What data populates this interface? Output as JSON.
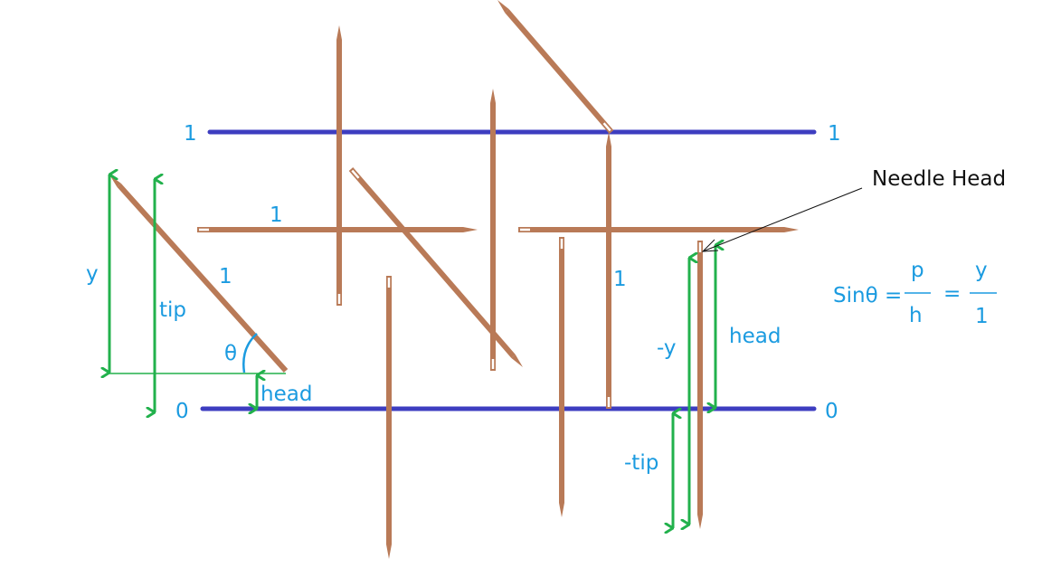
{
  "labels": {
    "line_top_left": "1",
    "line_top_right": "1",
    "line_bottom_left": "0",
    "line_bottom_right": "0",
    "needle_horizontal": "1",
    "needle_slanted": "1",
    "needle_vertical": "1",
    "y": "y",
    "tip": "tip",
    "theta": "θ",
    "head": "head",
    "neg_y": "-y",
    "neg_tip": "-tip",
    "head_right": "head",
    "needle_head": "Needle Head"
  },
  "formula": {
    "lhs": "Sinθ =",
    "p": "p",
    "h": "h",
    "equals": "=",
    "y": "y",
    "one": "1"
  },
  "colors": {
    "line": "#3d3dc0",
    "needle": "#b97a57",
    "arrow": "#22b14c",
    "label": "#1b9be0",
    "annotation": "#111111"
  }
}
